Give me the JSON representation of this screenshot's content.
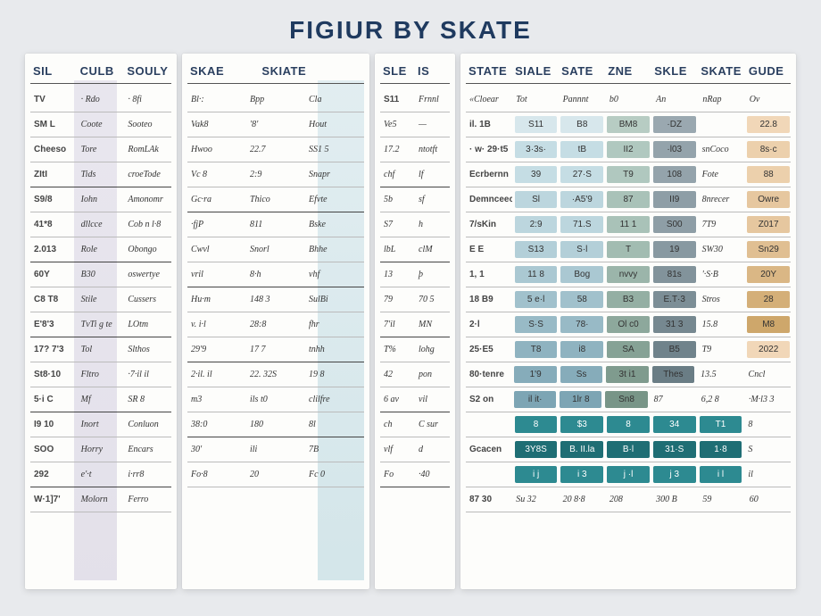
{
  "title": "FIGIUR BY SKATE",
  "colors": {
    "bg": "#e8eaed",
    "panel": "#fdfdfb",
    "title": "#1f3a5f",
    "rule": "#bbbbbb",
    "rule_dark": "#444444",
    "purple_band": "#cec9dc",
    "blue_band": "#b8d6de",
    "teal1": "#8fc4c8",
    "teal2": "#5fa7ad",
    "teal3": "#2d8a91",
    "teal_dark": "#1f6e74",
    "peach1": "#f1d7b8",
    "peach2": "#e8c49a",
    "peach3": "#dcaf7c",
    "slate": "#9aa8b0",
    "sage": "#b7ccc3"
  },
  "panel_left": {
    "headers": [
      "SIL",
      "CULB",
      "SOULY"
    ],
    "sub": [
      "TV",
      "· Rdo",
      "· 8fi"
    ],
    "rows": [
      [
        "SM L",
        "Coote",
        "Sooteo"
      ],
      [
        "Cheeso",
        "Tore",
        "RomLAk"
      ],
      [
        "ZItI",
        "Tids",
        "croeTode"
      ],
      [
        "S9/8",
        "Iohn",
        "Amonomr"
      ],
      [
        "41*8",
        "dllcce",
        "Cob n l·8"
      ],
      [
        "2.013",
        "Role",
        "Obongo"
      ],
      [
        "60Y",
        "B30",
        "oswertye"
      ],
      [
        "C8 T8",
        "Stile",
        "Cussers"
      ],
      [
        "E'8'3",
        "TvTi g te",
        "LOtm"
      ],
      [
        "17? 7'3",
        "Tol",
        "Slthos"
      ],
      [
        "St8·10",
        "Fltro",
        "·7·il il"
      ],
      [
        "5·i C",
        "Mf",
        "SR 8"
      ],
      [
        "I9 10",
        "Inort",
        "Conluon"
      ],
      [
        "SOO",
        "Horry",
        "Encars"
      ],
      [
        "292",
        "e'·t",
        "i·rr8"
      ],
      [
        "W·1]7'",
        "Molorn",
        "Ferro"
      ]
    ]
  },
  "panel_mid": {
    "headers": [
      "SKAE",
      "SKIATE"
    ],
    "sub": [
      "Bl·:",
      "Bpp",
      "Cla"
    ],
    "sub2": [
      "Vak8",
      "'8'",
      "Hout"
    ],
    "rows": [
      [
        "Hwoo",
        "22.7",
        "SS1 5"
      ],
      [
        "Vc 8",
        "2:9",
        "Snapr"
      ],
      [
        "Gc·ra",
        "Thico",
        "Efvte"
      ],
      [
        "·fjP",
        "811",
        "Bske"
      ],
      [
        "Cwvl",
        "Snorl",
        "Bhhe"
      ],
      [
        "vril",
        "8·h",
        "vhf"
      ],
      [
        "Hu·m",
        "148 3",
        "SulBi"
      ],
      [
        "v. i·l",
        "28:8",
        "fhr"
      ],
      [
        "29'9",
        "17 7",
        "tnhh"
      ],
      [
        "2·il. il",
        "22. 32S",
        "19 8"
      ],
      [
        "m3",
        "ils t0",
        "clilfre"
      ],
      [
        "38:0",
        "180",
        "8l"
      ],
      [
        "30'",
        "ili",
        "7B"
      ],
      [
        "Fo·8",
        "20",
        "Fc 0"
      ]
    ]
  },
  "panel_narrow": {
    "headers": [
      "SLE",
      "IS"
    ],
    "sub": [
      "S11",
      "Frnnl"
    ],
    "rows": [
      [
        "Ve5",
        "—"
      ],
      [
        "17.2",
        "ntotft"
      ],
      [
        "chf",
        "lf"
      ],
      [
        "5b",
        "sf"
      ],
      [
        "S7",
        "h"
      ],
      [
        "lbL",
        "clM"
      ],
      [
        "13",
        "þ"
      ],
      [
        "79",
        "70 5"
      ],
      [
        "7'il",
        "MN"
      ],
      [
        "T%",
        "lohg"
      ],
      [
        "42",
        "pon"
      ],
      [
        "6 av",
        "vil"
      ],
      [
        "ch",
        "C sur"
      ],
      [
        "vlf",
        "d"
      ],
      [
        "Fo",
        "·40"
      ]
    ]
  },
  "panel_right": {
    "headers": [
      "STATE",
      "SIALE",
      "SATE",
      "ZNE",
      "SKLE",
      "SKATE",
      "GUDE"
    ],
    "sub": [
      "«Cloear",
      "Tot",
      "Pannnt",
      "b0",
      "An",
      "nRap",
      "Ov"
    ],
    "chip_rows": [
      {
        "cells": [
          "il. 1B",
          "S11",
          "B8",
          "BM8",
          "·DZ",
          "",
          "22.8"
        ],
        "colors": [
          "",
          "#d7e7ec",
          "#d7e7ec",
          "#b7ccc3",
          "#9aa8b0",
          "",
          "#f1d7b8"
        ]
      },
      {
        "cells": [
          "· w· 29·t5",
          "3·3s·",
          "tB",
          "II2",
          "·l03",
          "snCoco",
          "8s·c"
        ],
        "colors": [
          "",
          "#c5dde4",
          "#c5dde4",
          "#b0c8bf",
          "#94a3ab",
          "",
          "#ecd0ac"
        ]
      },
      {
        "cells": [
          "Ecrbernn",
          "39",
          "27·S",
          "T9",
          "108",
          "Fote",
          "88"
        ],
        "colors": [
          "",
          "#c5dde4",
          "#c5dde4",
          "#b0c8bf",
          "#94a3ab",
          "",
          "#ecd0ac"
        ]
      },
      {
        "cells": [
          "Demnceecen",
          "Sl",
          "·A5'9",
          "87",
          "II9",
          "8nrecer",
          "Owre"
        ],
        "colors": [
          "",
          "#bcd6de",
          "#bcd6de",
          "#a9c2b8",
          "#8e9ea6",
          "",
          "#e6c79f"
        ]
      },
      {
        "cells": [
          "7/sKin",
          "2:9",
          "71.S",
          "11 1",
          "S00",
          "7T9",
          "Z017"
        ],
        "colors": [
          "",
          "#bcd6de",
          "#bcd6de",
          "#a9c2b8",
          "#8e9ea6",
          "",
          "#e6c79f"
        ]
      },
      {
        "cells": [
          "E  E",
          "S13",
          "S·l",
          "T",
          "19",
          "SW30",
          "Sn29"
        ],
        "colors": [
          "",
          "#b3cfd8",
          "#b3cfd8",
          "#a2bcb1",
          "#8899a1",
          "",
          "#e0bf92"
        ]
      },
      {
        "cells": [
          "1, 1",
          "11 8",
          "Bog",
          "nvvy",
          "81s",
          "'·S·B",
          "20Y"
        ],
        "colors": [
          "",
          "#aac8d2",
          "#aac8d2",
          "#9bb5aa",
          "#82939b",
          "",
          "#dab785"
        ]
      },
      {
        "cells": [
          "18 B9",
          "5 e·l",
          "58",
          "B3",
          "E.T·3",
          "Stros",
          "28"
        ],
        "colors": [
          "",
          "#a1c1cc",
          "#a1c1cc",
          "#94afa3",
          "#7c8e96",
          "",
          "#d4af78"
        ]
      },
      {
        "cells": [
          "2·l",
          "S·S",
          "78·",
          "Ol c0",
          "31 3",
          "15.8",
          "M8"
        ],
        "colors": [
          "",
          "#98bac6",
          "#98bac6",
          "#8da89c",
          "#768890",
          "",
          "#cea76b"
        ]
      },
      {
        "cells": [
          "25·E5",
          "T8",
          "i8",
          "SA",
          "B5",
          "T9",
          "2022"
        ],
        "colors": [
          "",
          "#8fb3c0",
          "#8fb3c0",
          "#86a295",
          "#70838b",
          "",
          "#f1d7b8"
        ]
      },
      {
        "cells": [
          "80·tenre",
          "1'9",
          "Ss",
          "3t i1",
          "Thes",
          "13.5",
          "Cncl"
        ],
        "colors": [
          "",
          "#86acba",
          "#86acba",
          "#7f9b8e",
          "#6a7d85",
          "",
          ""
        ]
      },
      {
        "cells": [
          "S2 on",
          "il it·",
          "1lr 8",
          "Sn8",
          "87",
          "6,2 8",
          "·M·l3 3"
        ],
        "colors": [
          "",
          "#7da5b4",
          "#7da5b4",
          "#789587",
          "",
          "",
          ""
        ]
      },
      {
        "cells": [
          "",
          "8",
          "$3",
          "8",
          "34",
          "T1",
          "8"
        ],
        "colors": [
          "",
          "#2d8a91",
          "#2d8a91",
          "#2d8a91",
          "#2d8a91",
          "#2d8a91",
          ""
        ]
      },
      {
        "cells": [
          "Gcacen",
          "3Y8S",
          "B. II.la",
          "B·l",
          "31·S",
          "1·8",
          "S"
        ],
        "colors": [
          "",
          "#1f6e74",
          "#1f6e74",
          "#1f6e74",
          "#1f6e74",
          "#1f6e74",
          ""
        ]
      },
      {
        "cells": [
          "",
          "i j",
          "i 3",
          "j ·l",
          "j 3",
          "i l",
          "il"
        ],
        "colors": [
          "",
          "#2d8a91",
          "#2d8a91",
          "#2d8a91",
          "#2d8a91",
          "#2d8a91",
          ""
        ]
      },
      {
        "cells": [
          "87 30",
          "Su 32",
          "20 8·8",
          "208",
          "300 B",
          "59",
          "60"
        ],
        "colors": [
          "",
          "",
          "",
          "",
          "",
          "",
          ""
        ]
      }
    ]
  }
}
